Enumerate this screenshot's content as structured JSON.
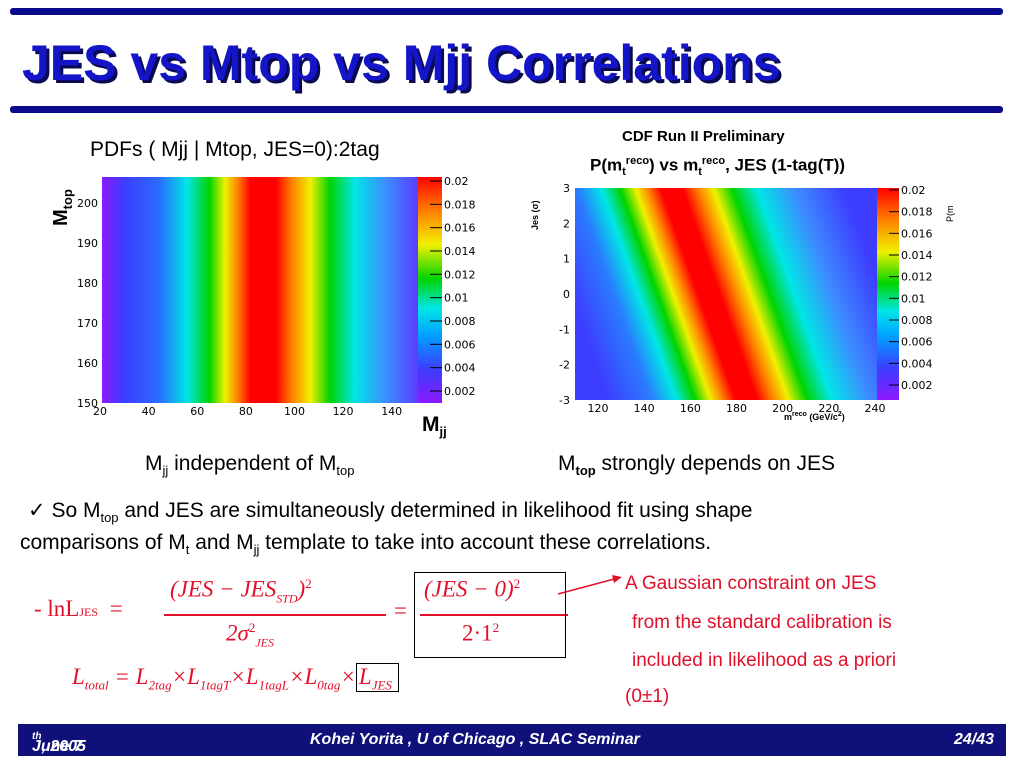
{
  "slide": {
    "title": "JES vs Mtop vs Mjj Correlations",
    "colors": {
      "title": "#1414c8",
      "rule": "#0a0a8c",
      "footer_bg": "#10107a",
      "accent_red": "#e0102a"
    }
  },
  "left_plot": {
    "caption": "PDFs ( Mjj | Mtop, JES=0):2tag",
    "y_axis_label": "M",
    "y_axis_label_sub": "top",
    "x_axis_label": "M",
    "x_axis_label_sub": "jj",
    "y_ticks": [
      "150",
      "160",
      "170",
      "180",
      "190",
      "200"
    ],
    "x_ticks": [
      "20",
      "40",
      "60",
      "80",
      "100",
      "120",
      "140"
    ],
    "colorbar_ticks": [
      "0.02",
      "0.018",
      "0.016",
      "0.014",
      "0.012",
      "0.01",
      "0.008",
      "0.006",
      "0.004",
      "0.002"
    ],
    "below_caption": {
      "pre": "M",
      "sub": "jj",
      "mid": " independent of M",
      "sub2": "top"
    }
  },
  "right_plot": {
    "title_line1": "CDF Run II Preliminary",
    "title_line2": "P(m",
    "title_line2_sub": "t",
    "title_line2_sup": "reco",
    "title_line2_mid": ") vs m",
    "title_line2_tail": ", JES (1-tag(T))",
    "y_axis_label": "Jes (σ)",
    "x_axis_label": "m",
    "x_axis_label_tail": " (GeV/c",
    "colorbar_label": "P(m",
    "y_ticks": [
      "-3",
      "-2",
      "-1",
      "0",
      "1",
      "2",
      "3"
    ],
    "x_ticks": [
      "120",
      "140",
      "160",
      "180",
      "200",
      "220",
      "240"
    ],
    "colorbar_ticks": [
      "0.02",
      "0.018",
      "0.016",
      "0.014",
      "0.012",
      "0.01",
      "0.008",
      "0.006",
      "0.004",
      "0.002"
    ],
    "below_caption": {
      "pre": "M",
      "sub": "top",
      "tail": "  strongly depends on JES"
    }
  },
  "body": {
    "check": "✓",
    "line1_a": " So M",
    "line1_sub": "top",
    "line1_b": "  and JES are simultaneously determined in likelihood fit using shape",
    "line2_a": "comparisons of M",
    "line2_sub": "t",
    "line2_b": "  and M",
    "line2_sub2": "jj",
    "line2_c": " template to take into account these correlations."
  },
  "equation": {
    "lhs": "- lnL",
    "lhs_sub": "JES",
    "num1": "(JES − JES",
    "num1_sub": "STD",
    "num1_close": ")",
    "num1_sup": "2",
    "den1": "2σ",
    "den1_sup": "2",
    "den1_sub": "JES",
    "num2": "(JES − 0)",
    "num2_sup": "2",
    "den2": "2·1",
    "den2_sup": "2",
    "eq_sign": "=",
    "ltotal": "L",
    "ltotal_sub": "total",
    "l2": "L",
    "l2_sub": "2tag",
    "l1t": "L",
    "l1t_sub": "1tagT",
    "l1l": "L",
    "l1l_sub": "1tagL",
    "l0": "L",
    "l0_sub": "0tag",
    "ljes": "L",
    "ljes_sub": "JES",
    "times": "×"
  },
  "annotation": {
    "line1": "A Gaussian constraint on JES",
    "line2": "from the standard calibration is",
    "line3": "included in likelihood as a priori",
    "line4": "(0±1)"
  },
  "footer": {
    "date": "June 7",
    "date_sup": "th",
    "date_tail": " , 2005",
    "center": "Kohei Yorita , U of Chicago , SLAC Seminar",
    "page": "24/43"
  }
}
